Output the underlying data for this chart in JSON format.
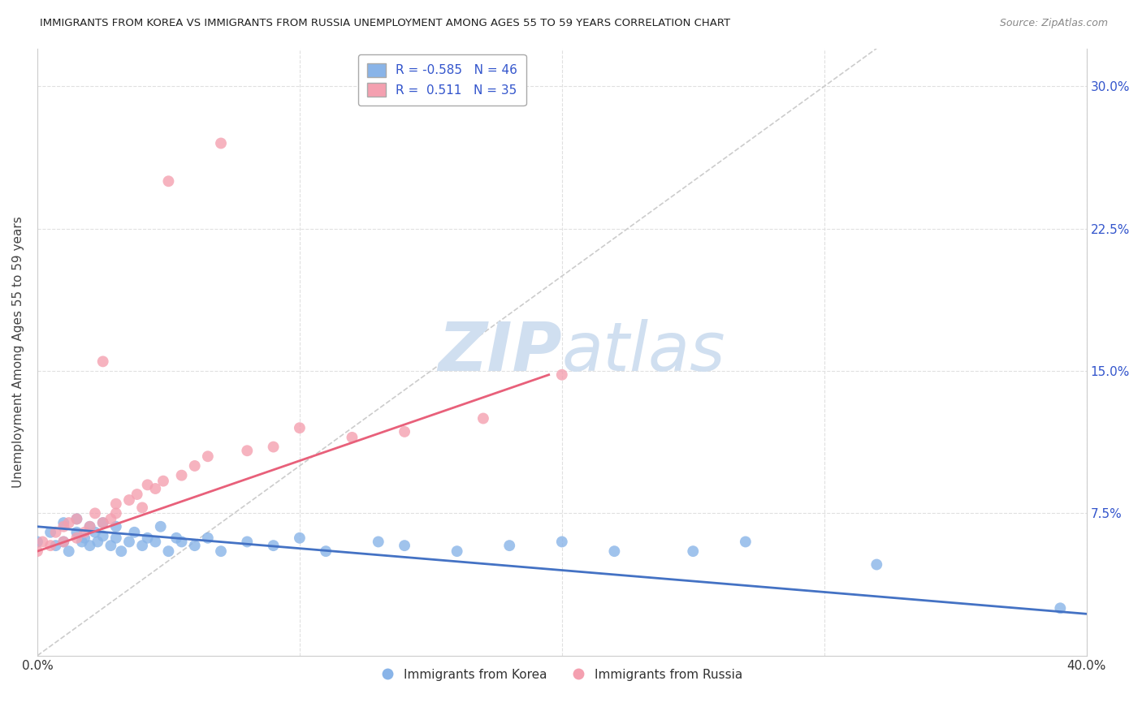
{
  "title": "IMMIGRANTS FROM KOREA VS IMMIGRANTS FROM RUSSIA UNEMPLOYMENT AMONG AGES 55 TO 59 YEARS CORRELATION CHART",
  "source": "Source: ZipAtlas.com",
  "ylabel": "Unemployment Among Ages 55 to 59 years",
  "xlim": [
    0.0,
    0.4
  ],
  "ylim": [
    0.0,
    0.32
  ],
  "korea_R": -0.585,
  "korea_N": 46,
  "russia_R": 0.511,
  "russia_N": 35,
  "korea_color": "#89b4e8",
  "russia_color": "#f4a0b0",
  "korea_line_color": "#4472c4",
  "russia_line_color": "#e8607a",
  "diagonal_color": "#cccccc",
  "watermark": "ZIPatlas",
  "watermark_color": "#d0dff0",
  "background_color": "#ffffff",
  "korea_x": [
    0.0,
    0.005,
    0.007,
    0.01,
    0.01,
    0.012,
    0.015,
    0.015,
    0.017,
    0.018,
    0.02,
    0.02,
    0.022,
    0.023,
    0.025,
    0.025,
    0.028,
    0.03,
    0.03,
    0.032,
    0.035,
    0.037,
    0.04,
    0.042,
    0.045,
    0.047,
    0.05,
    0.053,
    0.055,
    0.06,
    0.065,
    0.07,
    0.08,
    0.09,
    0.1,
    0.11,
    0.13,
    0.14,
    0.16,
    0.18,
    0.2,
    0.22,
    0.25,
    0.27,
    0.32,
    0.39
  ],
  "korea_y": [
    0.06,
    0.065,
    0.058,
    0.06,
    0.07,
    0.055,
    0.065,
    0.072,
    0.06,
    0.062,
    0.058,
    0.068,
    0.065,
    0.06,
    0.063,
    0.07,
    0.058,
    0.062,
    0.068,
    0.055,
    0.06,
    0.065,
    0.058,
    0.062,
    0.06,
    0.068,
    0.055,
    0.062,
    0.06,
    0.058,
    0.062,
    0.055,
    0.06,
    0.058,
    0.062,
    0.055,
    0.06,
    0.058,
    0.055,
    0.058,
    0.06,
    0.055,
    0.055,
    0.06,
    0.048,
    0.025
  ],
  "russia_x": [
    0.0,
    0.002,
    0.005,
    0.007,
    0.01,
    0.01,
    0.012,
    0.015,
    0.015,
    0.018,
    0.02,
    0.022,
    0.025,
    0.025,
    0.028,
    0.03,
    0.03,
    0.035,
    0.038,
    0.04,
    0.042,
    0.045,
    0.048,
    0.05,
    0.055,
    0.06,
    0.065,
    0.07,
    0.08,
    0.09,
    0.1,
    0.12,
    0.14,
    0.17,
    0.2
  ],
  "russia_y": [
    0.055,
    0.06,
    0.058,
    0.065,
    0.06,
    0.068,
    0.07,
    0.062,
    0.072,
    0.065,
    0.068,
    0.075,
    0.07,
    0.155,
    0.072,
    0.075,
    0.08,
    0.082,
    0.085,
    0.078,
    0.09,
    0.088,
    0.092,
    0.25,
    0.095,
    0.1,
    0.105,
    0.27,
    0.108,
    0.11,
    0.12,
    0.115,
    0.118,
    0.125,
    0.148
  ],
  "korea_line_x": [
    0.0,
    0.4
  ],
  "korea_line_y": [
    0.068,
    0.022
  ],
  "russia_line_x": [
    0.0,
    0.195
  ],
  "russia_line_y": [
    0.055,
    0.148
  ]
}
